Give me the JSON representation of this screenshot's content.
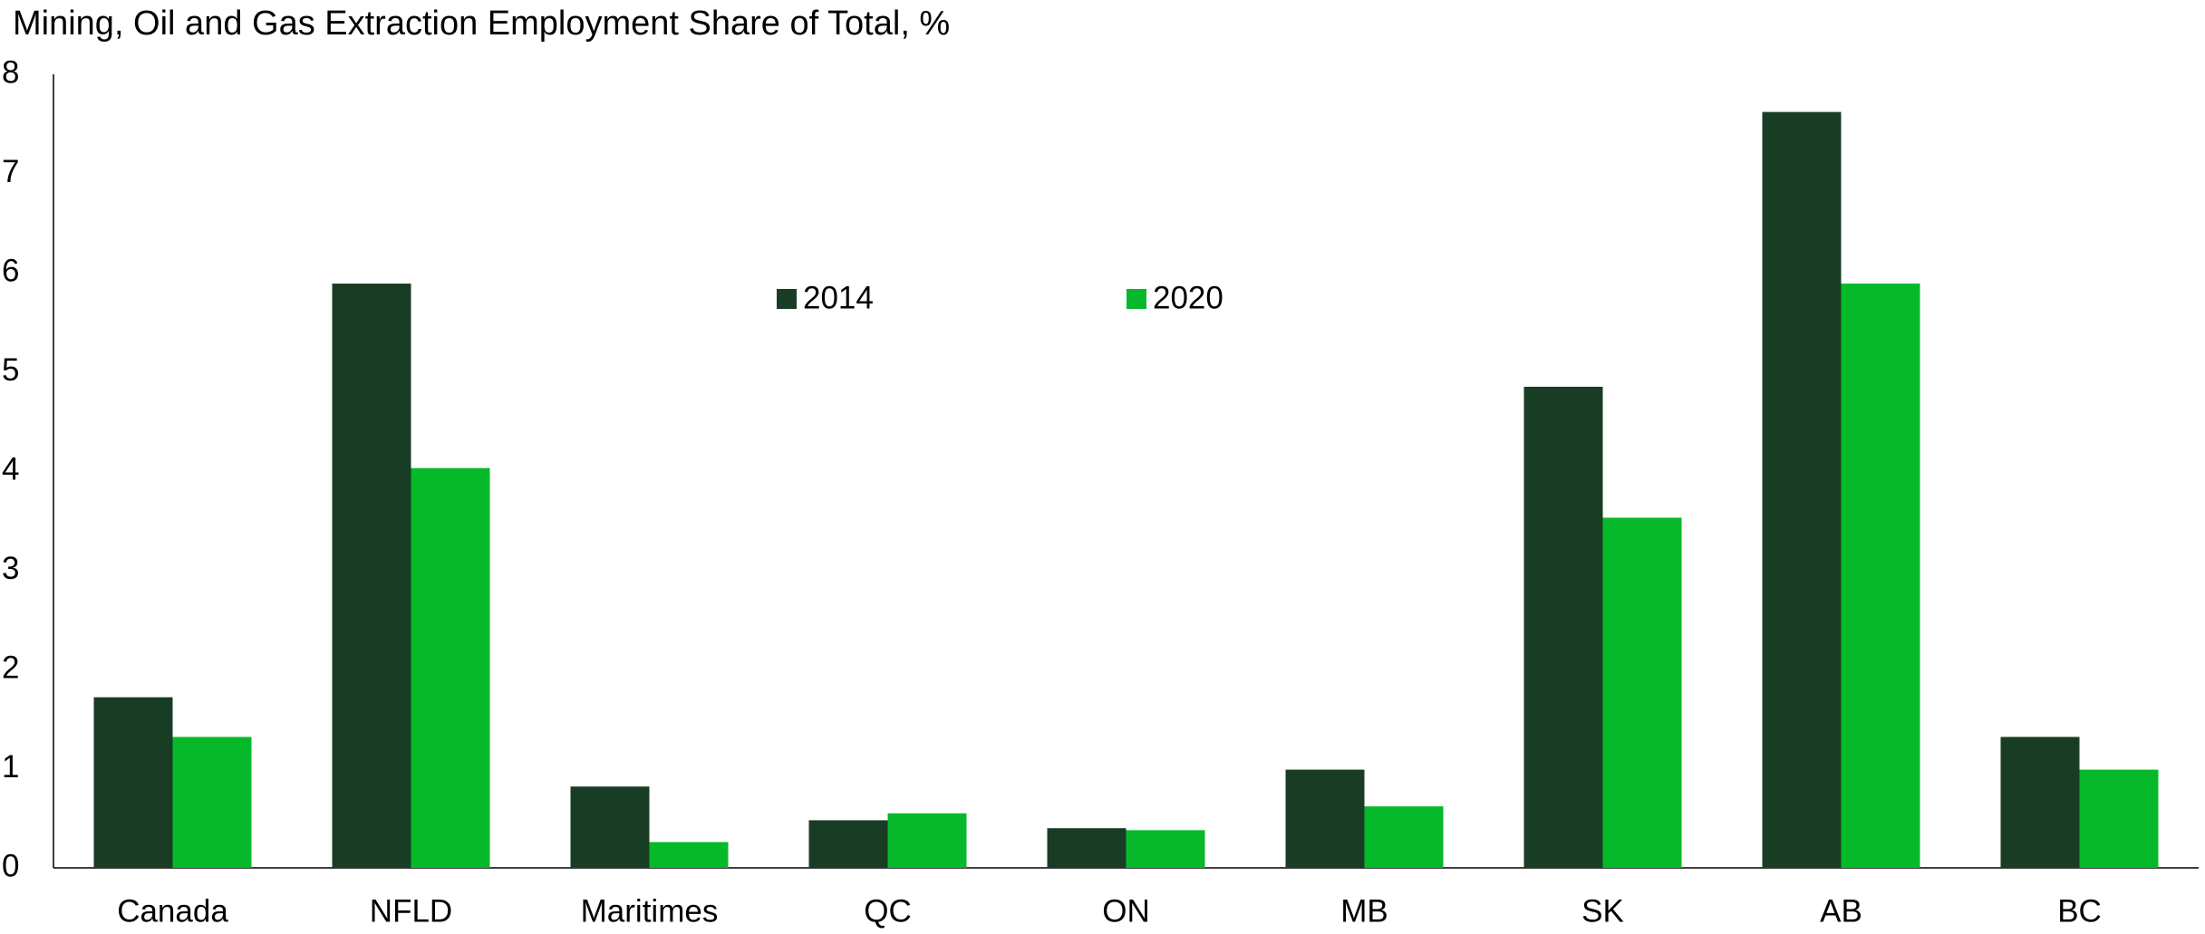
{
  "chart_data": {
    "type": "bar",
    "title": "Mining, Oil and Gas Extraction Employment Share of Total, %",
    "categories": [
      "Canada",
      "NFLD",
      "Maritimes",
      "QC",
      "ON",
      "MB",
      "SK",
      "AB",
      "BC"
    ],
    "series": [
      {
        "name": "2014",
        "color": "#193d24",
        "values": [
          1.72,
          5.89,
          0.82,
          0.48,
          0.4,
          0.99,
          4.85,
          7.62,
          1.32
        ]
      },
      {
        "name": "2020",
        "color": "#06b92a",
        "values": [
          1.32,
          4.03,
          0.26,
          0.55,
          0.38,
          0.62,
          3.53,
          5.89,
          0.99
        ]
      }
    ],
    "ylim": [
      0,
      8
    ],
    "yticks": [
      0,
      1,
      2,
      3,
      4,
      5,
      6,
      7,
      8
    ],
    "grid": false
  }
}
